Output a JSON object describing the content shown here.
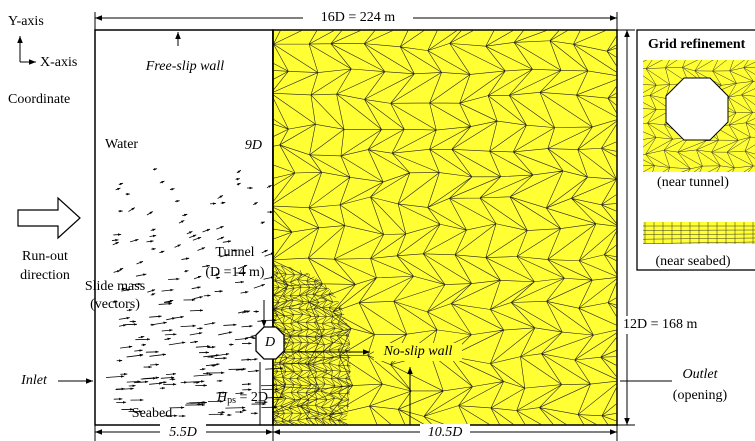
{
  "coordinate": {
    "y_axis": "Y-axis",
    "x_axis": "X-axis",
    "label": "Coordinate"
  },
  "dimensions": {
    "width": "16D = 224 m",
    "height": "12D = 168 m",
    "left": "5.5D",
    "right": "10.5D",
    "tunnel_level": "9D",
    "burial": {
      "symbol": "H",
      "subscript": "ps",
      "rest": " = 2D"
    }
  },
  "boundaries": {
    "top": "Free-slip wall",
    "bottom": "No-slip wall",
    "inlet": "Inlet",
    "outlet": "Outlet",
    "outlet_note": "(opening)"
  },
  "regions": {
    "water": "Water",
    "seabed": "Seabed",
    "slide_mass": "Slide mass",
    "slide_mass_note": "(vectors)",
    "tunnel": "Tunnel",
    "tunnel_note": "(D =14 m)",
    "tunnel_symbol": "D"
  },
  "flow": {
    "line1": "Run-out",
    "line2": "direction"
  },
  "inset": {
    "title": "Grid refinement",
    "tunnel_caption": "(near tunnel)",
    "seabed_caption": "(near seabed)"
  }
}
